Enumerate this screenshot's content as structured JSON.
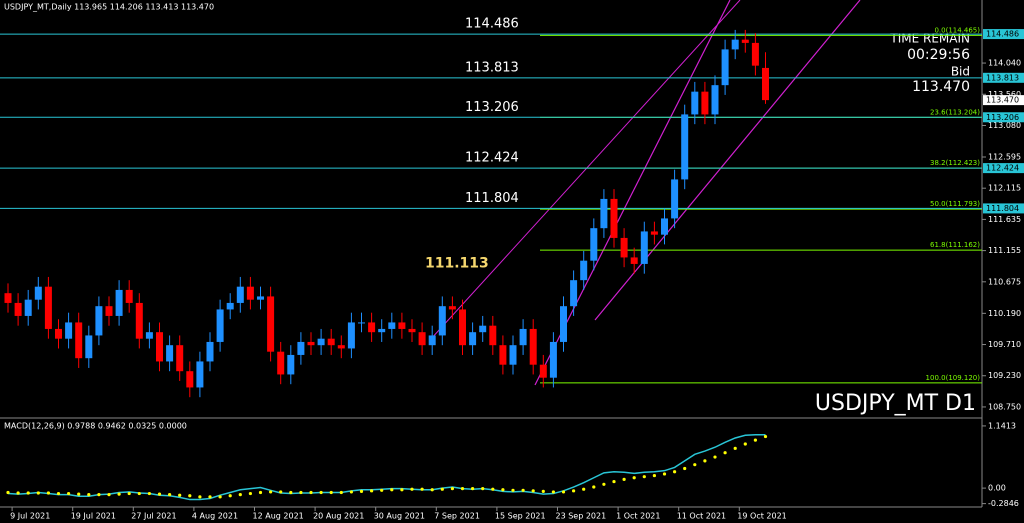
{
  "chart_data": [
    {
      "type": "candlestick",
      "header": "USDJPY_MT,Daily  113.965 114.206 113.413 113.470",
      "watermark": "USDJPY_MT D1",
      "time_remain_label": "TIME REMAIN",
      "time_remain": "00:29:56",
      "bid_label": "Bid",
      "bid": "113.470",
      "up_color": "#1e90ff",
      "down_color": "#ff0000",
      "categories": [
        null,
        "9 Jul 2021",
        null,
        null,
        null,
        null,
        null,
        "19 Jul 2021",
        null,
        null,
        null,
        null,
        null,
        "27 Jul 2021",
        null,
        null,
        null,
        null,
        null,
        "4 Aug 2021",
        null,
        null,
        null,
        null,
        null,
        "12 Aug 2021",
        null,
        null,
        null,
        null,
        null,
        "20 Aug 2021",
        null,
        null,
        null,
        null,
        null,
        "30 Aug 2021",
        null,
        null,
        null,
        null,
        null,
        "7 Sep 2021",
        null,
        null,
        null,
        null,
        null,
        "15 Sep 2021",
        null,
        null,
        null,
        null,
        null,
        "23 Sep 2021",
        null,
        null,
        null,
        null,
        null,
        "1 Oct 2021",
        null,
        null,
        null,
        null,
        null,
        "11 Oct 2021",
        null,
        null,
        null,
        null,
        null,
        "19 Oct 2021",
        null,
        null
      ],
      "open": [
        110.5,
        110.35,
        110.15,
        110.4,
        110.6,
        109.95,
        109.8,
        110.05,
        109.5,
        109.85,
        110.3,
        110.15,
        110.55,
        110.35,
        109.8,
        109.9,
        109.45,
        109.7,
        109.3,
        109.05,
        109.45,
        109.75,
        110.25,
        110.35,
        110.6,
        110.4,
        110.45,
        109.6,
        109.25,
        109.55,
        109.75,
        109.7,
        109.8,
        109.7,
        109.65,
        110.05,
        110.05,
        109.9,
        109.95,
        110.05,
        109.95,
        109.9,
        109.7,
        109.85,
        110.3,
        110.25,
        109.7,
        109.9,
        110.0,
        109.7,
        109.4,
        109.7,
        109.95,
        109.4,
        109.2,
        109.75,
        110.3,
        110.7,
        111.0,
        111.5,
        111.95,
        111.35,
        111.05,
        110.95,
        111.45,
        111.4,
        111.65,
        112.25,
        113.25,
        113.6,
        113.25,
        113.7,
        114.25,
        114.4,
        114.35,
        113.965
      ],
      "high": [
        110.65,
        110.5,
        110.55,
        110.75,
        110.75,
        110.1,
        110.2,
        110.2,
        110.0,
        110.45,
        110.45,
        110.7,
        110.7,
        110.5,
        110.05,
        110.05,
        109.85,
        109.85,
        109.45,
        109.6,
        109.9,
        110.4,
        110.5,
        110.75,
        110.75,
        110.6,
        110.6,
        109.75,
        109.7,
        109.9,
        109.9,
        109.95,
        109.95,
        109.85,
        110.2,
        110.2,
        110.2,
        110.1,
        110.2,
        110.2,
        110.1,
        110.05,
        110.0,
        110.45,
        110.45,
        110.4,
        110.05,
        110.15,
        110.15,
        109.85,
        109.85,
        110.1,
        110.1,
        109.55,
        109.9,
        110.45,
        110.85,
        111.15,
        111.65,
        112.1,
        112.1,
        111.5,
        111.2,
        111.6,
        111.6,
        111.8,
        112.4,
        113.4,
        113.75,
        113.75,
        113.85,
        114.4,
        114.55,
        114.55,
        114.5,
        114.206
      ],
      "low": [
        110.2,
        110.0,
        110.0,
        110.25,
        109.8,
        109.65,
        109.65,
        109.35,
        109.35,
        109.7,
        110.0,
        110.0,
        110.2,
        109.65,
        109.65,
        109.3,
        109.3,
        109.15,
        108.9,
        108.9,
        109.3,
        109.6,
        110.1,
        110.2,
        110.25,
        110.25,
        109.45,
        109.1,
        109.1,
        109.4,
        109.55,
        109.55,
        109.55,
        109.5,
        109.5,
        109.9,
        109.75,
        109.75,
        109.8,
        109.8,
        109.75,
        109.55,
        109.55,
        109.7,
        110.1,
        109.55,
        109.55,
        109.75,
        109.55,
        109.25,
        109.25,
        109.55,
        109.25,
        109.05,
        109.05,
        109.6,
        110.15,
        110.55,
        110.85,
        111.35,
        111.2,
        110.9,
        110.8,
        110.8,
        111.25,
        111.25,
        111.5,
        112.1,
        113.1,
        113.1,
        113.1,
        113.55,
        114.1,
        114.2,
        113.85,
        113.413
      ],
      "close": [
        110.35,
        110.15,
        110.4,
        110.6,
        109.95,
        109.8,
        110.05,
        109.5,
        109.85,
        110.3,
        110.15,
        110.55,
        110.35,
        109.8,
        109.9,
        109.45,
        109.7,
        109.3,
        109.05,
        109.45,
        109.75,
        110.25,
        110.35,
        110.6,
        110.4,
        110.45,
        109.6,
        109.25,
        109.55,
        109.75,
        109.7,
        109.8,
        109.7,
        109.65,
        110.05,
        110.05,
        109.9,
        109.95,
        110.05,
        109.95,
        109.9,
        109.7,
        109.85,
        110.3,
        110.25,
        109.7,
        109.9,
        110.0,
        109.7,
        109.4,
        109.7,
        109.95,
        109.4,
        109.2,
        109.75,
        110.3,
        110.7,
        111.0,
        111.5,
        111.95,
        111.35,
        111.05,
        110.95,
        111.45,
        111.4,
        111.65,
        112.25,
        113.25,
        113.6,
        113.25,
        113.7,
        114.25,
        114.4,
        114.35,
        114.0,
        113.47
      ],
      "ylim": [
        108.58,
        115.01
      ],
      "yticks": [
        {
          "value": 114.04,
          "label": "114.040"
        },
        {
          "value": 113.56,
          "label": "113.560"
        },
        {
          "value": 113.08,
          "label": "113.080"
        },
        112.595,
        112.115,
        111.635,
        111.155,
        110.675,
        {
          "value": 110.19,
          "label": "110.190"
        },
        {
          "value": 109.71,
          "label": "109.710"
        },
        {
          "value": 109.23,
          "label": "109.230"
        },
        {
          "value": 108.75,
          "label": "108.750"
        }
      ],
      "levels": [
        114.486,
        113.813,
        113.206,
        112.424,
        111.804
      ],
      "level_color": "#29c5d6",
      "marked_level": 111.113,
      "fib_color": "#7cfc00",
      "fib_levels": [
        {
          "value": 114.465,
          "label": "0.0(114.465)"
        },
        {
          "value": 113.204,
          "label": "23.6(113.204)"
        },
        {
          "value": 112.423,
          "label": "38.2(112.423)"
        },
        {
          "value": 111.793,
          "label": "50.0(111.793)"
        },
        {
          "value": 111.162,
          "label": "61.8(111.162)"
        },
        {
          "value": 109.12,
          "label": "100.0(109.120)"
        }
      ]
    },
    {
      "type": "line",
      "title": "MACD(12,26,9) 0.9788 0.9462 0.0325 0.0000",
      "ylim": [
        -0.31,
        1.25
      ],
      "yticks": [
        1.1413,
        {
          "value": 0,
          "label": "0.00"
        },
        -0.2846
      ],
      "series": [
        {
          "color": "#29c5d6",
          "values": [
            -0.1,
            -0.11,
            -0.1,
            -0.08,
            -0.1,
            -0.12,
            -0.12,
            -0.15,
            -0.15,
            -0.12,
            -0.11,
            -0.08,
            -0.07,
            -0.09,
            -0.1,
            -0.13,
            -0.14,
            -0.17,
            -0.21,
            -0.21,
            -0.19,
            -0.13,
            -0.08,
            -0.03,
            -0.01,
            0.01,
            -0.04,
            -0.09,
            -0.1,
            -0.09,
            -0.09,
            -0.08,
            -0.08,
            -0.08,
            -0.05,
            -0.03,
            -0.03,
            -0.02,
            -0.01,
            -0.01,
            -0.02,
            -0.03,
            -0.03,
            0.0,
            0.02,
            -0.01,
            -0.02,
            -0.01,
            -0.03,
            -0.06,
            -0.07,
            -0.06,
            -0.08,
            -0.11,
            -0.1,
            -0.05,
            0.02,
            0.1,
            0.19,
            0.28,
            0.3,
            0.29,
            0.27,
            0.29,
            0.3,
            0.32,
            0.38,
            0.5,
            0.62,
            0.68,
            0.75,
            0.84,
            0.92,
            0.97,
            0.98,
            0.9788
          ]
        },
        {
          "color": "#ffff00",
          "values": [
            -0.08,
            -0.09,
            -0.09,
            -0.09,
            -0.09,
            -0.1,
            -0.1,
            -0.11,
            -0.12,
            -0.12,
            -0.12,
            -0.11,
            -0.1,
            -0.1,
            -0.1,
            -0.11,
            -0.12,
            -0.13,
            -0.14,
            -0.16,
            -0.16,
            -0.16,
            -0.14,
            -0.12,
            -0.1,
            -0.08,
            -0.07,
            -0.07,
            -0.08,
            -0.08,
            -0.08,
            -0.08,
            -0.08,
            -0.08,
            -0.07,
            -0.06,
            -0.05,
            -0.04,
            -0.03,
            -0.03,
            -0.02,
            -0.02,
            -0.03,
            -0.02,
            -0.01,
            -0.01,
            -0.01,
            -0.01,
            -0.02,
            -0.03,
            -0.04,
            -0.04,
            -0.05,
            -0.06,
            -0.07,
            -0.07,
            -0.05,
            -0.02,
            0.02,
            0.07,
            0.12,
            0.16,
            0.19,
            0.21,
            0.23,
            0.26,
            0.3,
            0.36,
            0.43,
            0.5,
            0.57,
            0.65,
            0.73,
            0.81,
            0.88,
            0.9462
          ]
        }
      ]
    }
  ]
}
